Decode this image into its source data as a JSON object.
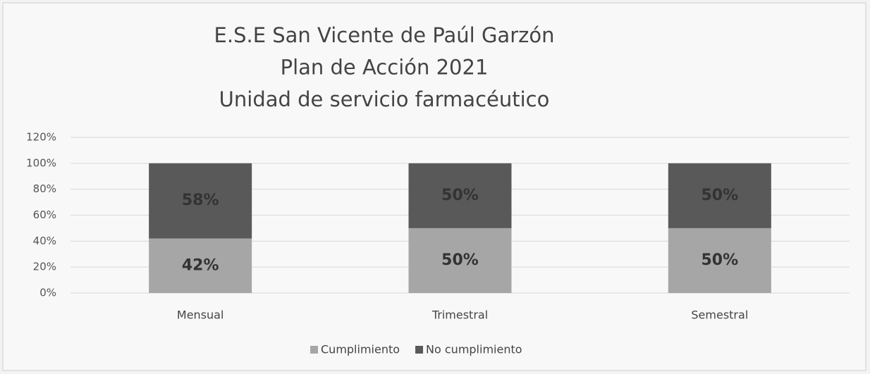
{
  "chart_data": {
    "type": "stacked_bar",
    "title": [
      "E.S.E San Vicente de Paúl Garzón",
      "Plan de Acción 2021",
      "Unidad de servicio farmacéutico"
    ],
    "categories": [
      "Mensual",
      "Trimestral",
      "Semestral"
    ],
    "series": [
      {
        "name": "Cumplimiento",
        "color": "#a6a6a6",
        "values": [
          42,
          50,
          50
        ],
        "value_labels": [
          "42%",
          "50%",
          "50%"
        ]
      },
      {
        "name": "No cumplimiento",
        "color": "#595959",
        "values": [
          58,
          50,
          50
        ],
        "value_labels": [
          "58%",
          "50%",
          "50%"
        ]
      }
    ],
    "ylim": [
      0,
      120
    ],
    "yticks": [
      {
        "value": 0,
        "label": "0%"
      },
      {
        "value": 20,
        "label": "20%"
      },
      {
        "value": 40,
        "label": "40%"
      },
      {
        "value": 60,
        "label": "60%"
      },
      {
        "value": 80,
        "label": "80%"
      },
      {
        "value": 100,
        "label": "100%"
      },
      {
        "value": 120,
        "label": "120%"
      }
    ],
    "grid": true,
    "legend": "bottom"
  }
}
